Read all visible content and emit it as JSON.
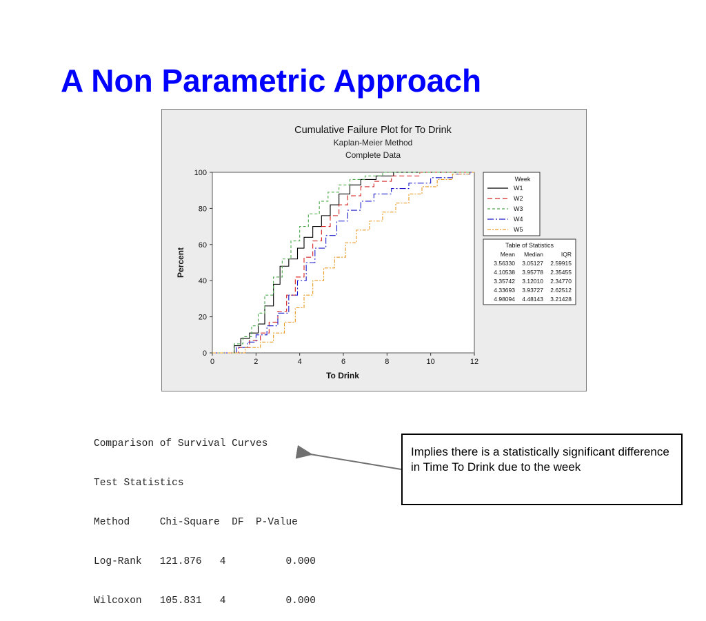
{
  "slide": {
    "title": "A Non Parametric Approach"
  },
  "chart_data": {
    "type": "line",
    "title": "Cumulative Failure Plot for To Drink",
    "subtitle_lines": [
      "Kaplan-Meier Method",
      "Complete Data"
    ],
    "xlabel": "To Drink",
    "ylabel": "Percent",
    "xlim": [
      0,
      12
    ],
    "ylim": [
      0,
      100
    ],
    "x_ticks": [
      0,
      2,
      4,
      6,
      8,
      10,
      12
    ],
    "y_ticks": [
      0,
      20,
      40,
      60,
      80,
      100
    ],
    "grid": false,
    "legend_title": "Week",
    "legend_placement": "right",
    "series": [
      {
        "name": "W1",
        "color": "#000000",
        "dash": "",
        "points": [
          [
            0,
            0
          ],
          [
            0.6,
            0
          ],
          [
            1.0,
            4
          ],
          [
            1.3,
            8
          ],
          [
            1.7,
            11
          ],
          [
            2.1,
            16
          ],
          [
            2.4,
            26
          ],
          [
            2.8,
            38
          ],
          [
            3.1,
            48
          ],
          [
            3.5,
            52
          ],
          [
            3.9,
            58
          ],
          [
            4.2,
            64
          ],
          [
            4.6,
            70
          ],
          [
            5.0,
            76
          ],
          [
            5.4,
            82
          ],
          [
            5.8,
            88
          ],
          [
            6.3,
            93
          ],
          [
            6.8,
            96
          ],
          [
            7.5,
            98
          ],
          [
            8.3,
            100
          ],
          [
            12,
            100
          ]
        ]
      },
      {
        "name": "W2",
        "color": "#d42020",
        "dash": "7,4",
        "points": [
          [
            0,
            0
          ],
          [
            0.7,
            0
          ],
          [
            1.2,
            3
          ],
          [
            1.7,
            7
          ],
          [
            2.2,
            11
          ],
          [
            2.6,
            17
          ],
          [
            3.0,
            23
          ],
          [
            3.4,
            32
          ],
          [
            3.8,
            42
          ],
          [
            4.2,
            53
          ],
          [
            4.6,
            62
          ],
          [
            5.0,
            70
          ],
          [
            5.4,
            76
          ],
          [
            5.8,
            82
          ],
          [
            6.2,
            87
          ],
          [
            6.8,
            92
          ],
          [
            7.4,
            95
          ],
          [
            8.2,
            98
          ],
          [
            9.5,
            100
          ],
          [
            12,
            100
          ]
        ]
      },
      {
        "name": "W3",
        "color": "#4aa84a",
        "dash": "4,3",
        "points": [
          [
            0,
            0
          ],
          [
            0.6,
            0
          ],
          [
            1.0,
            5
          ],
          [
            1.4,
            9
          ],
          [
            1.8,
            15
          ],
          [
            2.1,
            22
          ],
          [
            2.4,
            32
          ],
          [
            2.8,
            42
          ],
          [
            3.2,
            52
          ],
          [
            3.6,
            62
          ],
          [
            4.0,
            70
          ],
          [
            4.4,
            77
          ],
          [
            4.9,
            84
          ],
          [
            5.3,
            89
          ],
          [
            5.8,
            93
          ],
          [
            6.3,
            96
          ],
          [
            7.0,
            98
          ],
          [
            7.8,
            100
          ],
          [
            12,
            100
          ]
        ]
      },
      {
        "name": "W4",
        "color": "#1a1acc",
        "dash": "9,3,2,3",
        "points": [
          [
            0,
            0
          ],
          [
            0.7,
            0
          ],
          [
            1.1,
            3
          ],
          [
            1.6,
            6
          ],
          [
            2.0,
            10
          ],
          [
            2.5,
            15
          ],
          [
            3.0,
            22
          ],
          [
            3.5,
            32
          ],
          [
            3.9,
            40
          ],
          [
            4.3,
            50
          ],
          [
            4.7,
            58
          ],
          [
            5.2,
            65
          ],
          [
            5.7,
            73
          ],
          [
            6.2,
            79
          ],
          [
            6.8,
            84
          ],
          [
            7.4,
            88
          ],
          [
            8.2,
            91
          ],
          [
            9.0,
            94
          ],
          [
            10.0,
            97
          ],
          [
            11.0,
            99
          ],
          [
            11.8,
            100
          ],
          [
            12,
            100
          ]
        ]
      },
      {
        "name": "W5",
        "color": "#e89a20",
        "dash": "5,2,2,2",
        "points": [
          [
            0,
            0
          ],
          [
            0.8,
            0
          ],
          [
            1.5,
            3
          ],
          [
            2.2,
            6
          ],
          [
            2.8,
            11
          ],
          [
            3.3,
            17
          ],
          [
            3.8,
            25
          ],
          [
            4.2,
            32
          ],
          [
            4.6,
            40
          ],
          [
            5.1,
            47
          ],
          [
            5.6,
            53
          ],
          [
            6.1,
            61
          ],
          [
            6.6,
            68
          ],
          [
            7.2,
            73
          ],
          [
            7.8,
            78
          ],
          [
            8.4,
            83
          ],
          [
            9.0,
            88
          ],
          [
            9.6,
            92
          ],
          [
            10.3,
            96
          ],
          [
            11.0,
            99
          ],
          [
            11.8,
            100
          ],
          [
            12,
            100
          ]
        ]
      }
    ],
    "stats_table": {
      "title": "Table of Statistics",
      "headers": [
        "Mean",
        "Median",
        "IQR"
      ],
      "rows": [
        [
          "3.56330",
          "3.05127",
          "2.59915"
        ],
        [
          "4.10538",
          "3.95778",
          "2.35455"
        ],
        [
          "3.35742",
          "3.12010",
          "2.34770"
        ],
        [
          "4.33693",
          "3.93727",
          "2.62512"
        ],
        [
          "4.98094",
          "4.48143",
          "3.21428"
        ]
      ]
    }
  },
  "test_output": {
    "lines": [
      "Comparison of Survival Curves",
      "Test Statistics",
      "Method     Chi-Square  DF  P-Value",
      "Log-Rank   121.876   4          0.000",
      "Wilcoxon   105.831   4          0.000"
    ]
  },
  "callout": {
    "text": "Implies there is a statistically significant difference in Time To Drink due to the week"
  }
}
